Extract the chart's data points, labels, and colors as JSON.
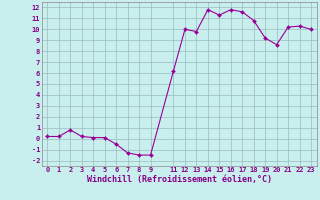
{
  "x": [
    0,
    1,
    2,
    3,
    4,
    5,
    6,
    7,
    8,
    9,
    11,
    12,
    13,
    14,
    15,
    16,
    17,
    18,
    19,
    20,
    21,
    22,
    23
  ],
  "y": [
    0.2,
    0.2,
    0.8,
    0.2,
    0.1,
    0.1,
    -0.5,
    -1.3,
    -1.5,
    -1.5,
    6.2,
    10.0,
    9.8,
    11.8,
    11.3,
    11.8,
    11.6,
    10.8,
    9.2,
    8.6,
    10.2,
    10.3,
    10.0
  ],
  "line_color": "#990099",
  "marker": "D",
  "marker_size": 2.0,
  "bg_color": "#c8eeee",
  "grid_color": "#99bbbb",
  "xlabel": "Windchill (Refroidissement éolien,°C)",
  "xlim": [
    -0.5,
    23.5
  ],
  "ylim": [
    -2.5,
    12.5
  ],
  "xticks": [
    0,
    1,
    2,
    3,
    4,
    5,
    6,
    7,
    8,
    9,
    11,
    12,
    13,
    14,
    15,
    16,
    17,
    18,
    19,
    20,
    21,
    22,
    23
  ],
  "yticks": [
    -2,
    -1,
    0,
    1,
    2,
    3,
    4,
    5,
    6,
    7,
    8,
    9,
    10,
    11,
    12
  ],
  "tick_label_color": "#880088",
  "tick_fontsize": 5.0,
  "xlabel_fontsize": 6.0,
  "spine_color": "#888888",
  "spine_linewidth": 0.5
}
